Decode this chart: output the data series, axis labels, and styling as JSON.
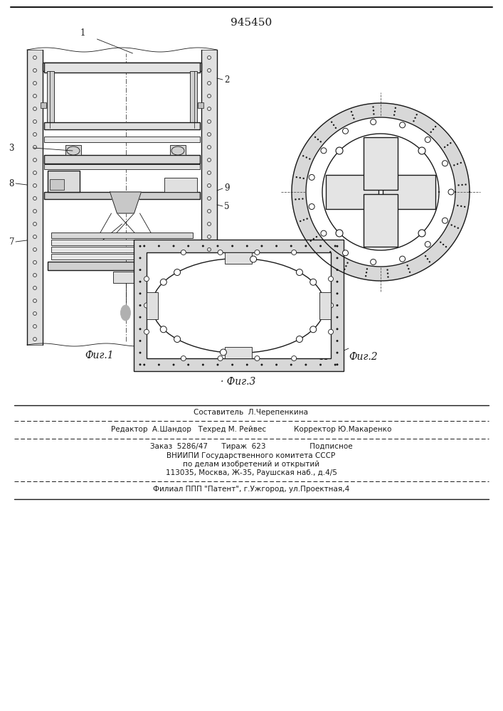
{
  "patent_number": "945450",
  "fig1_label": "Фиг.1",
  "fig2_label": "Фиг.2",
  "fig3_label": "Фиг.3",
  "bg_color": "#ffffff",
  "lc": "#1a1a1a",
  "footnote_lines": [
    "Составитель  Л.Черепенкина",
    "Редактор  А.Шандор   Техред М. Рейвес            Корректор Ю.Макаренко",
    "Заказ  5286/47      Тираж  623                   Подписное",
    "ВНИИПИ Государственного комитета СССР",
    "по делам изобретений и открытий",
    "113035, Москва, Ж-35, Раушская наб., д.4/5",
    "Филиал ППП \"Патент\", г.Ужгород, ул.Проектная,4"
  ]
}
